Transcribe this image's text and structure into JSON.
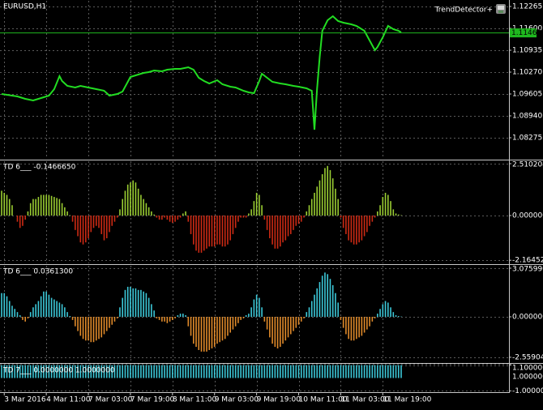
{
  "chart_data": [
    {
      "type": "line",
      "title": "EURUSD,H1",
      "indicator": "TrendDetector+",
      "x": [
        0,
        2,
        6,
        9,
        12,
        15,
        18,
        20,
        22,
        23,
        25,
        28,
        30,
        33,
        36,
        39,
        41,
        44,
        46,
        49,
        51,
        54,
        56,
        58,
        61,
        63,
        66,
        68,
        71,
        73,
        75,
        77,
        79,
        82,
        84,
        87,
        89,
        92,
        94,
        96,
        98,
        99,
        101,
        103,
        106,
        108,
        111,
        113,
        116,
        118,
        119,
        120,
        121,
        122,
        124,
        126,
        128,
        130,
        133,
        135,
        138,
        140,
        142,
        143,
        145,
        147,
        149,
        151,
        152
      ],
      "values": [
        1.09605,
        1.0958,
        1.09531,
        1.09457,
        1.09408,
        1.09482,
        1.09556,
        1.09753,
        1.10147,
        1.09999,
        1.09851,
        1.09802,
        1.09851,
        1.09802,
        1.09753,
        1.09703,
        1.09556,
        1.09605,
        1.09679,
        1.10122,
        1.10171,
        1.10245,
        1.1027,
        1.10319,
        1.10295,
        1.10344,
        1.10368,
        1.10368,
        1.10418,
        1.10344,
        1.10098,
        1.09999,
        1.09925,
        1.10024,
        1.09901,
        1.09827,
        1.09802,
        1.09703,
        1.09654,
        1.0963,
        1.09999,
        1.10221,
        1.10098,
        1.09974,
        1.09925,
        1.09901,
        1.09851,
        1.09827,
        1.09777,
        1.09703,
        1.08521,
        1.09753,
        1.10738,
        1.11526,
        1.11846,
        1.11969,
        1.11822,
        1.11772,
        1.11723,
        1.11674,
        1.11526,
        1.11231,
        1.10935,
        1.11033,
        1.11329,
        1.11674,
        1.11575,
        1.11526,
        1.11477
      ],
      "color": "#22dd22",
      "ylim": [
        1.07635,
        1.12462
      ],
      "yticks": [
        1.12265,
        {
          "value": 1.116,
          "label": "1.11600"
        },
        1.10935,
        {
          "value": 1.1027,
          "label": "1.10270"
        },
        1.09605,
        {
          "value": 1.0894,
          "label": "1.08940"
        },
        1.08275
      ],
      "last_price": 1.11462,
      "last_price_color": "#1fb81f",
      "grid": true
    },
    {
      "type": "bar",
      "title": "TD 6___ -0.1466650",
      "values": [
        1.2,
        1.1,
        1.0,
        0.8,
        0.5,
        0.0,
        -0.3,
        -0.6,
        -0.5,
        -0.2,
        0.2,
        0.6,
        0.8,
        0.8,
        0.9,
        1.0,
        1.0,
        1.0,
        1.0,
        0.95,
        0.9,
        0.85,
        0.8,
        0.6,
        0.4,
        0.2,
        0.02,
        -0.3,
        -0.7,
        -1.0,
        -1.3,
        -1.4,
        -1.3,
        -1.1,
        -0.8,
        -0.6,
        -0.5,
        -0.6,
        -0.9,
        -1.2,
        -1.1,
        -0.8,
        -0.5,
        -0.3,
        -0.1,
        0.3,
        0.8,
        1.2,
        1.5,
        1.6,
        1.7,
        1.6,
        1.3,
        1.0,
        0.8,
        0.6,
        0.4,
        0.2,
        0.05,
        -0.1,
        -0.2,
        -0.2,
        -0.1,
        -0.2,
        -0.3,
        -0.35,
        -0.3,
        -0.2,
        -0.1,
        0.1,
        0.2,
        -0.3,
        -0.9,
        -1.4,
        -1.7,
        -1.8,
        -1.8,
        -1.7,
        -1.6,
        -1.5,
        -1.5,
        -1.5,
        -1.4,
        -1.4,
        -1.5,
        -1.5,
        -1.4,
        -1.2,
        -0.9,
        -0.6,
        -0.3,
        -0.1,
        -0.1,
        -0.1,
        0.1,
        0.3,
        0.7,
        1.1,
        1.0,
        0.5,
        -0.2,
        -0.7,
        -1.1,
        -1.4,
        -1.6,
        -1.6,
        -1.5,
        -1.3,
        -1.2,
        -1.0,
        -0.9,
        -0.7,
        -0.5,
        -0.4,
        -0.3,
        -0.1,
        0.2,
        0.5,
        0.8,
        1.1,
        1.4,
        1.7,
        2.0,
        2.3,
        2.4,
        2.2,
        1.8,
        1.3,
        0.8,
        -0.1,
        -0.6,
        -0.9,
        -1.2,
        -1.3,
        -1.4,
        -1.4,
        -1.3,
        -1.2,
        -1.0,
        -0.8,
        -0.5,
        -0.3,
        -0.1,
        0.2,
        0.5,
        0.9,
        1.1,
        1.0,
        0.7,
        0.3,
        0.1,
        0.05,
        0.02
      ],
      "positive_color": "#9acd32",
      "negative_color": "#cc2a14",
      "ylim": [
        -2.314,
        2.667
      ],
      "yticks": [
        2.5102049,
        {
          "value": 0,
          "label": "0.0000000"
        },
        -2.1645237
      ],
      "grid": true
    },
    {
      "type": "bar",
      "title": "TD 6___ 0.0361300",
      "values": [
        1.5,
        1.5,
        1.3,
        1.0,
        0.7,
        0.5,
        0.3,
        0.1,
        -0.2,
        -0.3,
        -0.1,
        0.3,
        0.6,
        0.8,
        1.0,
        1.3,
        1.6,
        1.6,
        1.4,
        1.2,
        1.1,
        1.0,
        0.9,
        0.8,
        0.6,
        0.3,
        0.05,
        -0.2,
        -0.6,
        -0.9,
        -1.2,
        -1.4,
        -1.5,
        -1.5,
        -1.6,
        -1.6,
        -1.5,
        -1.4,
        -1.3,
        -1.1,
        -0.9,
        -0.7,
        -0.5,
        -0.3,
        -0.1,
        0.6,
        1.2,
        1.7,
        1.9,
        1.9,
        1.8,
        1.8,
        1.7,
        1.7,
        1.6,
        1.5,
        1.2,
        0.8,
        0.4,
        -0.1,
        -0.2,
        -0.3,
        -0.3,
        -0.4,
        -0.3,
        -0.2,
        -0.1,
        0.1,
        0.2,
        0.2,
        0.1,
        -0.6,
        -1.2,
        -1.7,
        -1.9,
        -2.1,
        -2.2,
        -2.2,
        -2.2,
        -2.1,
        -2.0,
        -1.9,
        -1.7,
        -1.6,
        -1.5,
        -1.4,
        -1.2,
        -1.0,
        -0.8,
        -0.6,
        -0.4,
        -0.2,
        -0.1,
        0.1,
        0.2,
        0.6,
        1.1,
        1.4,
        1.2,
        0.6,
        -0.3,
        -0.8,
        -1.3,
        -1.7,
        -1.9,
        -2.0,
        -1.9,
        -1.7,
        -1.5,
        -1.3,
        -1.1,
        -0.9,
        -0.7,
        -0.5,
        -0.3,
        -0.1,
        0.3,
        0.6,
        1.0,
        1.4,
        1.8,
        2.2,
        2.6,
        2.8,
        2.7,
        2.4,
        2.0,
        1.5,
        0.9,
        -0.2,
        -0.7,
        -1.1,
        -1.4,
        -1.5,
        -1.5,
        -1.4,
        -1.3,
        -1.2,
        -1.0,
        -0.8,
        -0.6,
        -0.3,
        -0.1,
        0.2,
        0.5,
        0.8,
        1.0,
        0.9,
        0.6,
        0.3,
        0.1,
        0.05,
        0.02
      ],
      "positive_color": "#3cc8d8",
      "negative_color": "#e08a2a",
      "ylim": [
        -2.87,
        3.28
      ],
      "yticks": [
        3.0759908,
        {
          "value": 0,
          "label": "0.0000000"
        },
        -2.5590484
      ],
      "grid": true
    },
    {
      "type": "bar",
      "title": "TD 7___ 0.0000000 1.0000000",
      "values": [
        1,
        1,
        1,
        1,
        1,
        1,
        1,
        1,
        1,
        1,
        1,
        1,
        1,
        1,
        1,
        1,
        1,
        1,
        1,
        1,
        1,
        1,
        1,
        1,
        1,
        1,
        1,
        1,
        1,
        1,
        1,
        1,
        1,
        1,
        1,
        1,
        1,
        1,
        1,
        1,
        1,
        1,
        1,
        1,
        1,
        1,
        1,
        1,
        1,
        1,
        1,
        1,
        1,
        1,
        1,
        1,
        1,
        1,
        1,
        1,
        1,
        1,
        1,
        1,
        1,
        1,
        1,
        1,
        1,
        1,
        1,
        1,
        1,
        1,
        1,
        1,
        1,
        1,
        1,
        1,
        1,
        1,
        1,
        1,
        1,
        1,
        1,
        1,
        1,
        1,
        1,
        1,
        1,
        1,
        1,
        1,
        1,
        1,
        1,
        1,
        1,
        1,
        1,
        1,
        1,
        1,
        1,
        1,
        1,
        1,
        1,
        1,
        1,
        1,
        1,
        1,
        1,
        1,
        1,
        1,
        1,
        1,
        1,
        1,
        1,
        1,
        1,
        1,
        1,
        1,
        1,
        1,
        1,
        1,
        1,
        1,
        1,
        1,
        1,
        1,
        1,
        1,
        1,
        1,
        1,
        1,
        1,
        1,
        1,
        1,
        1,
        1,
        1
      ],
      "color": "#3cc8d8",
      "ylim": [
        -1.1,
        1.1
      ],
      "yticks": [
        {
          "value": 1.1,
          "label": "1.1000000"
        },
        {
          "value": 1,
          "label": "1.0000000"
        },
        {
          "value": -1,
          "label": "-1.0000000"
        }
      ],
      "xlim": [
        0,
        193
      ],
      "xticks": [
        {
          "value": 1,
          "label": "3 Mar 2016"
        },
        {
          "value": 17,
          "label": "4 Mar 11:00"
        },
        {
          "value": 33,
          "label": "7 Mar 03:00"
        },
        {
          "value": 49,
          "label": "7 Mar 19:00"
        },
        {
          "value": 65,
          "label": "8 Mar 11:00"
        },
        {
          "value": 81,
          "label": "9 Mar 03:00"
        },
        {
          "value": 97,
          "label": "9 Mar 19:00"
        },
        {
          "value": 113,
          "label": "10 Mar 11:00"
        },
        {
          "value": 129,
          "label": "11 Mar 03:00"
        },
        {
          "value": 145,
          "label": "11 Mar 19:00"
        }
      ],
      "grid": true
    }
  ]
}
